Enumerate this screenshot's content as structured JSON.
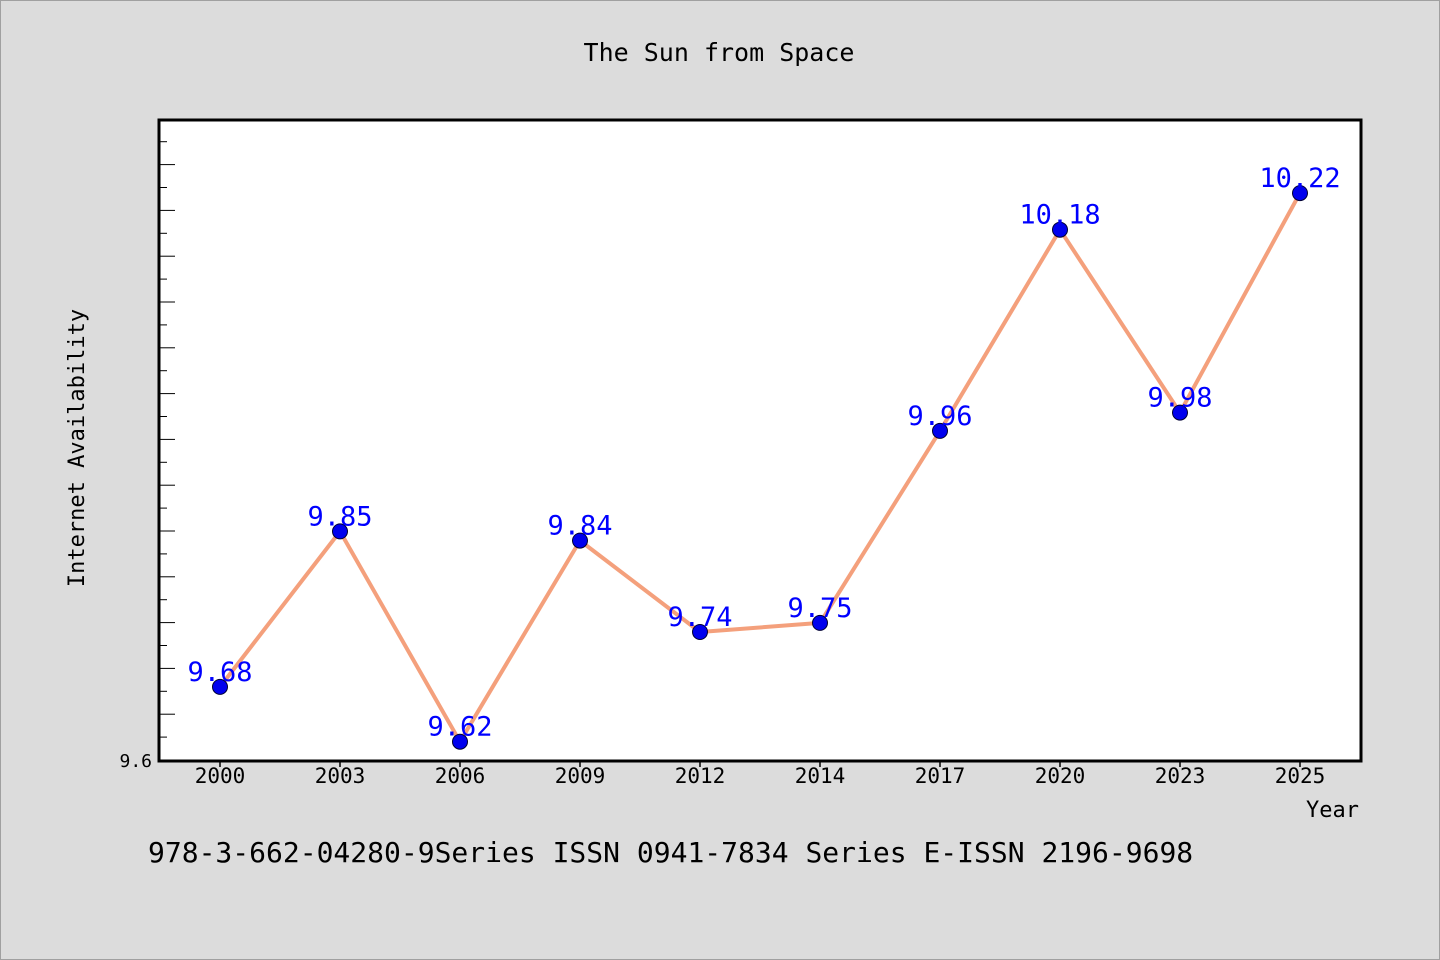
{
  "chart_data": {
    "type": "line",
    "title": "The Sun from Space",
    "xlabel": "Year",
    "ylabel": "Internet Availability",
    "categories": [
      "2000",
      "2003",
      "2006",
      "2009",
      "2012",
      "2014",
      "2017",
      "2020",
      "2023",
      "2025"
    ],
    "series": [
      {
        "values": [
          9.68,
          9.85,
          9.62,
          9.84,
          9.74,
          9.75,
          9.96,
          10.18,
          9.98,
          10.22
        ],
        "labels": [
          "9.68",
          "9.85",
          "9.62",
          "9.84",
          "9.74",
          "9.75",
          "9.96",
          "10.18",
          "9.98",
          "10.22"
        ]
      }
    ],
    "ylim": [
      9.6,
      10.3
    ],
    "y_tick_label": "9.6",
    "grid": false,
    "colors": {
      "line": "#f4a07c",
      "marker": "#0000ee",
      "data_label": "#0000ff",
      "background": "#dcdcdc",
      "plot_area": "#ffffff"
    }
  },
  "footer": {
    "text": "978-3-662-04280-9Series ISSN 0941-7834 Series E-ISSN 2196-9698"
  }
}
